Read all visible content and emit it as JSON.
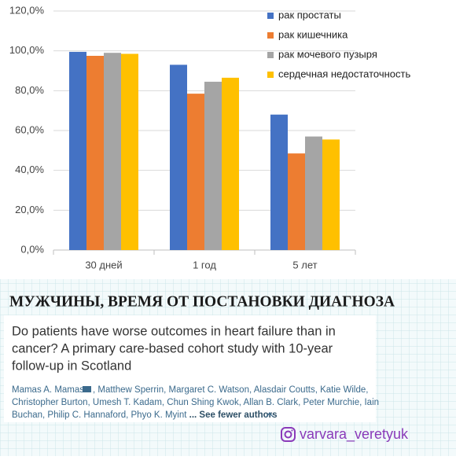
{
  "chart_data": {
    "type": "bar",
    "categories": [
      "30 дней",
      "1 год",
      "5 лет"
    ],
    "series": [
      {
        "name": "рак простаты",
        "color": "#4472c4",
        "values": [
          99.5,
          93,
          68
        ]
      },
      {
        "name": "рак кишечника",
        "color": "#ed7d31",
        "values": [
          97.5,
          78.5,
          48.5
        ]
      },
      {
        "name": "рак мочевого пузыря",
        "color": "#a5a5a5",
        "values": [
          99,
          84.5,
          57
        ]
      },
      {
        "name": "сердечная недостаточность",
        "color": "#ffc000",
        "values": [
          98.5,
          86.5,
          55.5
        ]
      }
    ],
    "ylim": [
      0,
      120
    ],
    "yticks": [
      {
        "value": 0,
        "label": "0,0%"
      },
      {
        "value": 20,
        "label": "20,0%"
      },
      {
        "value": 40,
        "label": "40,0%"
      },
      {
        "value": 60,
        "label": "60,0%"
      },
      {
        "value": 80,
        "label": "80,0%"
      },
      {
        "value": 100,
        "label": "100,0%"
      },
      {
        "value": 120,
        "label": "120,0%"
      }
    ],
    "grid": true,
    "legend": "top-right"
  },
  "heading": "МУЖЧИНЫ, ВРЕМЯ ОТ ПОСТАНОВКИ ДИАГНОЗА",
  "article": {
    "title_lines": [
      "Do patients have worse outcomes in heart failure than in",
      "cancer? A primary care-based cohort study with 10-year",
      "follow-up in Scotland"
    ],
    "first_author": "Mamas A. Mamas",
    "author_lines": [
      ", Matthew Sperrin,  Margaret C. Watson,  Alasdair Coutts,  Katie Wilde,",
      "Christopher Burton,  Umesh T. Kadam,  Chun Shing Kwok,  Allan B. Clark,  Peter Murchie,  Iain",
      "Buchan,  Philip C. Hannaford,  Phyo K. Myint"
    ],
    "toggle": "... See fewer authors"
  },
  "handle": "varvara_veretyuk"
}
